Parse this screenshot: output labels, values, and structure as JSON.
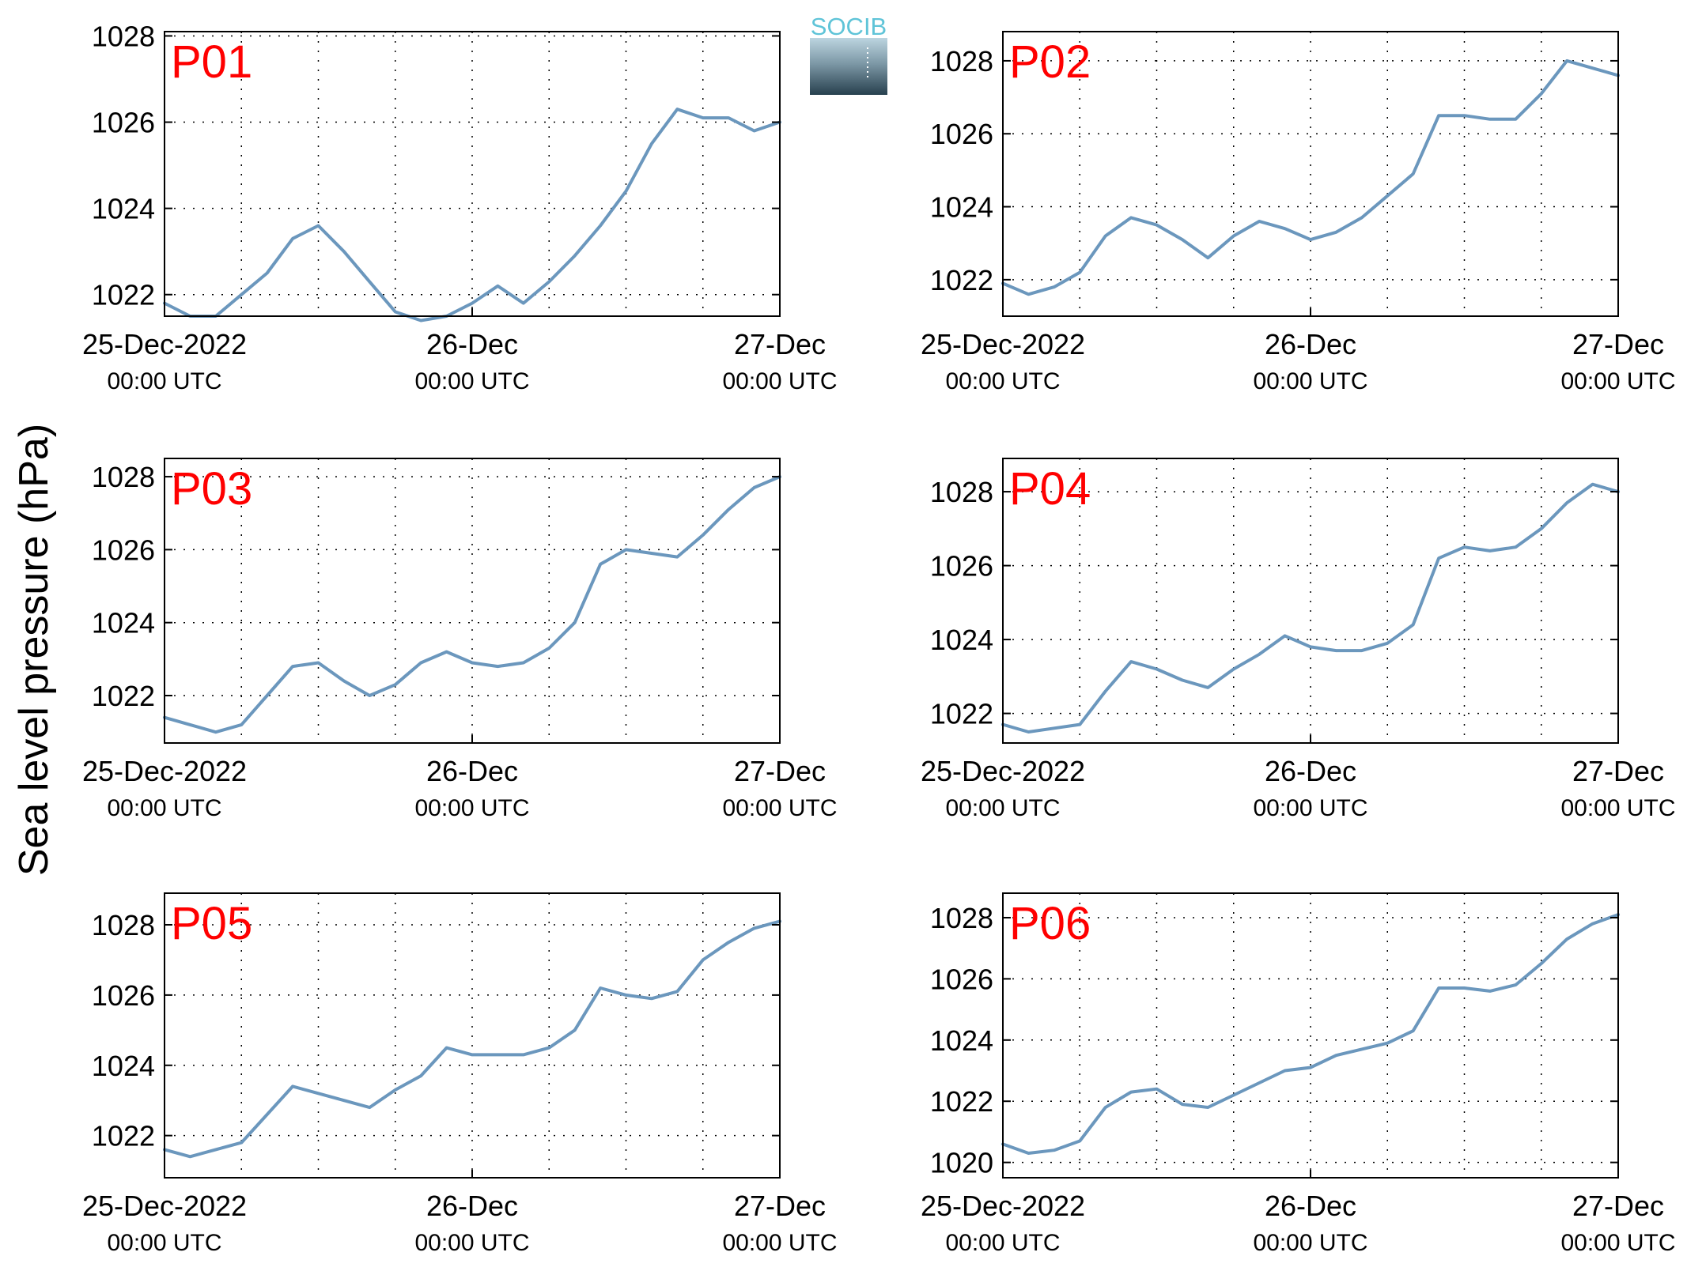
{
  "figure": {
    "ylabel": "Sea level pressure (hPa)",
    "logo_text": "SOCIB",
    "line_color": "#6b97bd",
    "label_color": "#ff0000"
  },
  "chart_data": [
    {
      "type": "line",
      "label": "P01",
      "x_ticks": [
        "25-Dec-2022",
        "26-Dec",
        "27-Dec"
      ],
      "x_tick_sub": [
        "00:00 UTC",
        "00:00 UTC",
        "00:00 UTC"
      ],
      "x_range_hours": [
        0,
        48
      ],
      "y_ticks": [
        1022,
        1024,
        1026,
        1028
      ],
      "ylim": [
        1021.5,
        1028.1
      ],
      "grid": true,
      "x": [
        0,
        2,
        4,
        6,
        8,
        10,
        12,
        14,
        16,
        18,
        20,
        22,
        24,
        26,
        28,
        30,
        32,
        34,
        36,
        38,
        40,
        42,
        44,
        46,
        48
      ],
      "values": [
        1021.8,
        1021.5,
        1021.5,
        1022.0,
        1022.5,
        1023.3,
        1023.6,
        1023.0,
        1022.3,
        1021.6,
        1021.4,
        1021.5,
        1021.8,
        1022.2,
        1021.8,
        1022.3,
        1022.9,
        1023.6,
        1024.4,
        1025.5,
        1026.3,
        1026.1,
        1026.1,
        1025.8,
        1026.0
      ]
    },
    {
      "type": "line",
      "label": "P02",
      "x_ticks": [
        "25-Dec-2022",
        "26-Dec",
        "27-Dec"
      ],
      "x_tick_sub": [
        "00:00 UTC",
        "00:00 UTC",
        "00:00 UTC"
      ],
      "x_range_hours": [
        0,
        48
      ],
      "y_ticks": [
        1022,
        1024,
        1026,
        1028
      ],
      "ylim": [
        1021.0,
        1028.8
      ],
      "grid": true,
      "x": [
        0,
        2,
        4,
        6,
        8,
        10,
        12,
        14,
        16,
        18,
        20,
        22,
        24,
        26,
        28,
        30,
        32,
        34,
        36,
        38,
        40,
        42,
        44,
        46,
        48
      ],
      "values": [
        1021.9,
        1021.6,
        1021.8,
        1022.2,
        1023.2,
        1023.7,
        1023.5,
        1023.1,
        1022.6,
        1023.2,
        1023.6,
        1023.4,
        1023.1,
        1023.3,
        1023.7,
        1024.3,
        1024.9,
        1026.5,
        1026.5,
        1026.4,
        1026.4,
        1027.1,
        1028.0,
        1027.8,
        1027.6
      ]
    },
    {
      "type": "line",
      "label": "P03",
      "x_ticks": [
        "25-Dec-2022",
        "26-Dec",
        "27-Dec"
      ],
      "x_tick_sub": [
        "00:00 UTC",
        "00:00 UTC",
        "00:00 UTC"
      ],
      "x_range_hours": [
        0,
        48
      ],
      "y_ticks": [
        1022,
        1024,
        1026,
        1028
      ],
      "ylim": [
        1020.7,
        1028.5
      ],
      "grid": true,
      "x": [
        0,
        2,
        4,
        6,
        8,
        10,
        12,
        14,
        16,
        18,
        20,
        22,
        24,
        26,
        28,
        30,
        32,
        34,
        36,
        38,
        40,
        42,
        44,
        46,
        48
      ],
      "values": [
        1021.4,
        1021.2,
        1021.0,
        1021.2,
        1022.0,
        1022.8,
        1022.9,
        1022.4,
        1022.0,
        1022.3,
        1022.9,
        1023.2,
        1022.9,
        1022.8,
        1022.9,
        1023.3,
        1024.0,
        1025.6,
        1026.0,
        1025.9,
        1025.8,
        1026.4,
        1027.1,
        1027.7,
        1028.0
      ]
    },
    {
      "type": "line",
      "label": "P04",
      "x_ticks": [
        "25-Dec-2022",
        "26-Dec",
        "27-Dec"
      ],
      "x_tick_sub": [
        "00:00 UTC",
        "00:00 UTC",
        "00:00 UTC"
      ],
      "x_range_hours": [
        0,
        48
      ],
      "y_ticks": [
        1022,
        1024,
        1026,
        1028
      ],
      "ylim": [
        1021.2,
        1028.9
      ],
      "grid": true,
      "x": [
        0,
        2,
        4,
        6,
        8,
        10,
        12,
        14,
        16,
        18,
        20,
        22,
        24,
        26,
        28,
        30,
        32,
        34,
        36,
        38,
        40,
        42,
        44,
        46,
        48
      ],
      "values": [
        1021.7,
        1021.5,
        1021.6,
        1021.7,
        1022.6,
        1023.4,
        1023.2,
        1022.9,
        1022.7,
        1023.2,
        1023.6,
        1024.1,
        1023.8,
        1023.7,
        1023.7,
        1023.9,
        1024.4,
        1026.2,
        1026.5,
        1026.4,
        1026.5,
        1027.0,
        1027.7,
        1028.2,
        1028.0
      ]
    },
    {
      "type": "line",
      "label": "P05",
      "x_ticks": [
        "25-Dec-2022",
        "26-Dec",
        "27-Dec"
      ],
      "x_tick_sub": [
        "00:00 UTC",
        "00:00 UTC",
        "00:00 UTC"
      ],
      "x_range_hours": [
        0,
        48
      ],
      "y_ticks": [
        1022,
        1024,
        1026,
        1028
      ],
      "ylim": [
        1020.8,
        1028.9
      ],
      "grid": true,
      "x": [
        0,
        2,
        4,
        6,
        8,
        10,
        12,
        14,
        16,
        18,
        20,
        22,
        24,
        26,
        28,
        30,
        32,
        34,
        36,
        38,
        40,
        42,
        44,
        46,
        48
      ],
      "values": [
        1021.6,
        1021.4,
        1021.6,
        1021.8,
        1022.6,
        1023.4,
        1023.2,
        1023.0,
        1022.8,
        1023.3,
        1023.7,
        1024.5,
        1024.3,
        1024.3,
        1024.3,
        1024.5,
        1025.0,
        1026.2,
        1026.0,
        1025.9,
        1026.1,
        1027.0,
        1027.5,
        1027.9,
        1028.1
      ]
    },
    {
      "type": "line",
      "label": "P06",
      "x_ticks": [
        "25-Dec-2022",
        "26-Dec",
        "27-Dec"
      ],
      "x_tick_sub": [
        "00:00 UTC",
        "00:00 UTC",
        "00:00 UTC"
      ],
      "x_range_hours": [
        0,
        48
      ],
      "y_ticks": [
        1020,
        1022,
        1024,
        1026,
        1028
      ],
      "ylim": [
        1019.5,
        1028.8
      ],
      "grid": true,
      "x": [
        0,
        2,
        4,
        6,
        8,
        10,
        12,
        14,
        16,
        18,
        20,
        22,
        24,
        26,
        28,
        30,
        32,
        34,
        36,
        38,
        40,
        42,
        44,
        46,
        48
      ],
      "values": [
        1020.6,
        1020.3,
        1020.4,
        1020.7,
        1021.8,
        1022.3,
        1022.4,
        1021.9,
        1021.8,
        1022.2,
        1022.6,
        1023.0,
        1023.1,
        1023.5,
        1023.7,
        1023.9,
        1024.3,
        1025.7,
        1025.7,
        1025.6,
        1025.8,
        1026.5,
        1027.3,
        1027.8,
        1028.1
      ]
    }
  ]
}
